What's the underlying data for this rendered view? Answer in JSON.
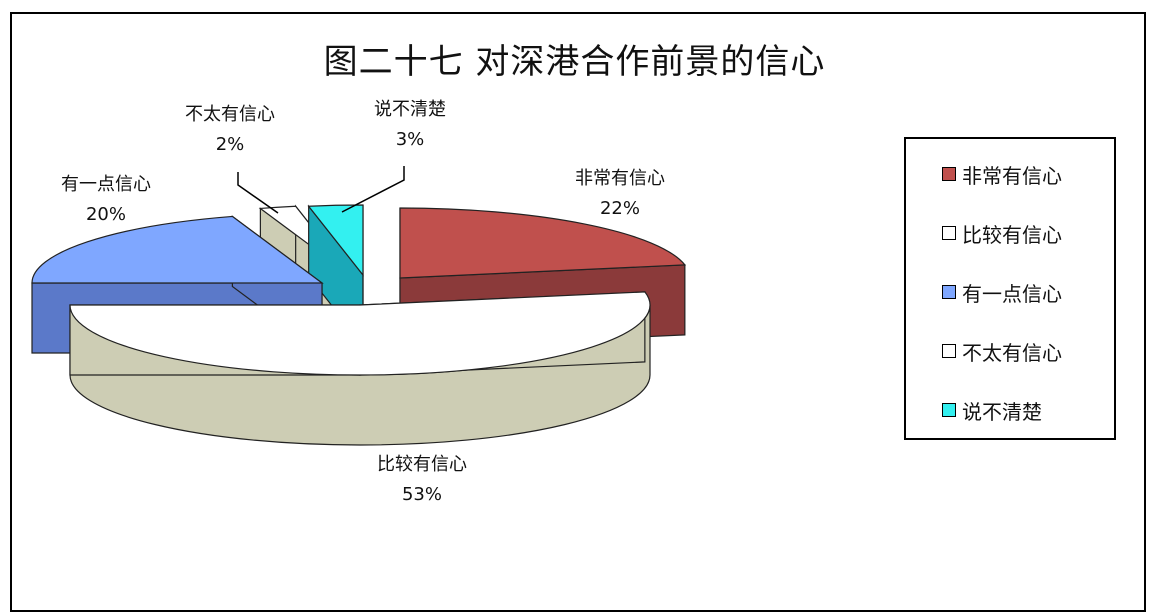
{
  "chart_data": {
    "type": "pie",
    "title": "图二十七  对深港合作前景的信心",
    "categories": [
      "非常有信心",
      "比较有信心",
      "有一点信心",
      "不太有信心",
      "说不清楚"
    ],
    "values": [
      22,
      53,
      20,
      2,
      3
    ],
    "value_labels": [
      "22%",
      "53%",
      "20%",
      "2%",
      "3%"
    ],
    "colors": [
      "#c0504d",
      "#ffffff",
      "#7fa7ff",
      "#ffffff",
      "#33f0f0"
    ],
    "side_colors": [
      "#8b3a3a",
      "#cdcdb4",
      "#5b79c9",
      "#cdcdb4",
      "#1aa8b8"
    ],
    "legend_placement": "right",
    "style": "3D exploded pie"
  }
}
